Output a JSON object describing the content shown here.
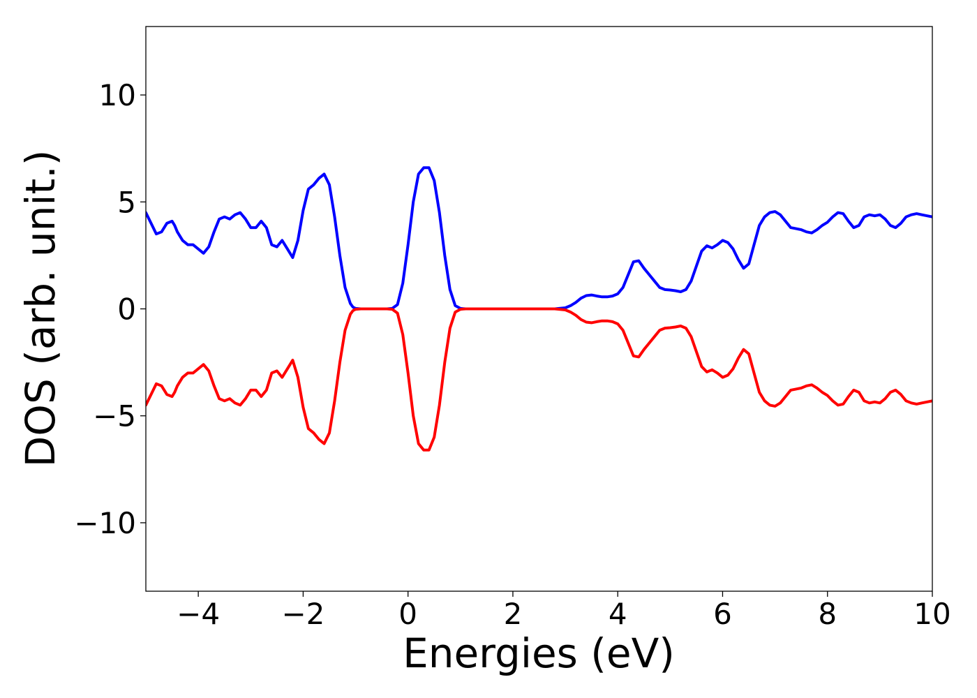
{
  "chart_data": {
    "type": "line",
    "title": "",
    "xlabel": "Energies (eV)",
    "ylabel": "DOS (arb. unit.)",
    "xlim": [
      -5,
      10
    ],
    "ylim": [
      -13.2,
      13.2
    ],
    "xticks": [
      -4,
      -2,
      0,
      2,
      4,
      6,
      8,
      10
    ],
    "xtick_labels": [
      "−4",
      "−2",
      "0",
      "2",
      "4",
      "6",
      "8",
      "10"
    ],
    "yticks": [
      -10,
      -5,
      0,
      5,
      10
    ],
    "ytick_labels": [
      "−10",
      "−5",
      "0",
      "5",
      "10"
    ],
    "grid": false,
    "legend": "none",
    "series": [
      {
        "color": "#0000ff",
        "x": [
          -5.0,
          -4.9,
          -4.8,
          -4.7,
          -4.6,
          -4.5,
          -4.45,
          -4.4,
          -4.3,
          -4.2,
          -4.1,
          -4.0,
          -3.9,
          -3.8,
          -3.7,
          -3.6,
          -3.5,
          -3.4,
          -3.3,
          -3.2,
          -3.1,
          -3.0,
          -2.9,
          -2.8,
          -2.7,
          -2.6,
          -2.5,
          -2.4,
          -2.3,
          -2.2,
          -2.1,
          -2.0,
          -1.9,
          -1.8,
          -1.7,
          -1.6,
          -1.5,
          -1.4,
          -1.3,
          -1.2,
          -1.1,
          -1.05,
          -1.0,
          -0.9,
          -0.8,
          -0.7,
          -0.6,
          -0.5,
          -0.4,
          -0.3,
          -0.2,
          -0.1,
          0.0,
          0.1,
          0.2,
          0.3,
          0.4,
          0.5,
          0.6,
          0.7,
          0.8,
          0.9,
          1.0,
          1.05,
          1.1,
          1.15,
          1.2,
          1.3,
          1.4,
          1.5,
          1.6,
          1.7,
          1.8,
          1.9,
          2.0,
          2.2,
          2.4,
          2.6,
          2.8,
          3.0,
          3.1,
          3.2,
          3.3,
          3.4,
          3.5,
          3.6,
          3.7,
          3.8,
          3.9,
          4.0,
          4.1,
          4.2,
          4.3,
          4.4,
          4.5,
          4.6,
          4.7,
          4.8,
          4.9,
          5.0,
          5.1,
          5.2,
          5.3,
          5.4,
          5.5,
          5.6,
          5.7,
          5.8,
          5.9,
          6.0,
          6.1,
          6.2,
          6.3,
          6.4,
          6.5,
          6.6,
          6.7,
          6.8,
          6.9,
          7.0,
          7.1,
          7.2,
          7.3,
          7.4,
          7.5,
          7.6,
          7.7,
          7.8,
          7.9,
          8.0,
          8.1,
          8.2,
          8.3,
          8.4,
          8.5,
          8.6,
          8.7,
          8.8,
          8.9,
          9.0,
          9.1,
          9.2,
          9.3,
          9.4,
          9.5,
          9.6,
          9.7,
          9.8,
          9.9,
          10.0
        ],
        "y": [
          4.5,
          4.0,
          3.5,
          3.6,
          4.0,
          4.1,
          3.9,
          3.6,
          3.2,
          3.0,
          3.0,
          2.8,
          2.6,
          2.9,
          3.6,
          4.2,
          4.3,
          4.2,
          4.4,
          4.5,
          4.2,
          3.8,
          3.8,
          4.1,
          3.8,
          3.0,
          2.9,
          3.2,
          2.8,
          2.4,
          3.2,
          4.6,
          5.6,
          5.8,
          6.1,
          6.3,
          5.8,
          4.3,
          2.5,
          1.0,
          0.25,
          0.08,
          0.02,
          0.0,
          0.0,
          0.0,
          0.0,
          0.0,
          0.0,
          0.02,
          0.2,
          1.2,
          3.0,
          5.0,
          6.3,
          6.6,
          6.6,
          6.0,
          4.5,
          2.5,
          0.9,
          0.15,
          0.02,
          0.01,
          0.0,
          0.0,
          0.0,
          0.0,
          0.0,
          0.0,
          0.0,
          0.0,
          0.0,
          0.0,
          0.0,
          0.0,
          0.0,
          0.0,
          0.0,
          0.05,
          0.15,
          0.3,
          0.5,
          0.62,
          0.65,
          0.6,
          0.56,
          0.56,
          0.6,
          0.7,
          1.0,
          1.6,
          2.2,
          2.25,
          1.9,
          1.6,
          1.3,
          1.0,
          0.9,
          0.88,
          0.85,
          0.8,
          0.9,
          1.3,
          2.0,
          2.7,
          2.95,
          2.85,
          3.0,
          3.2,
          3.1,
          2.8,
          2.3,
          1.9,
          2.1,
          3.0,
          3.9,
          4.3,
          4.5,
          4.55,
          4.4,
          4.1,
          3.8,
          3.75,
          3.7,
          3.6,
          3.55,
          3.7,
          3.9,
          4.05,
          4.3,
          4.5,
          4.45,
          4.1,
          3.8,
          3.9,
          4.3,
          4.4,
          4.35,
          4.4,
          4.2,
          3.9,
          3.8,
          4.0,
          4.3,
          4.4,
          4.45,
          4.4,
          4.35,
          4.3
        ]
      },
      {
        "color": "#ff0000",
        "x": [
          -5.0,
          -4.9,
          -4.8,
          -4.7,
          -4.6,
          -4.5,
          -4.45,
          -4.4,
          -4.3,
          -4.2,
          -4.1,
          -4.0,
          -3.9,
          -3.8,
          -3.7,
          -3.6,
          -3.5,
          -3.4,
          -3.3,
          -3.2,
          -3.1,
          -3.0,
          -2.9,
          -2.8,
          -2.7,
          -2.6,
          -2.5,
          -2.4,
          -2.3,
          -2.2,
          -2.1,
          -2.0,
          -1.9,
          -1.8,
          -1.7,
          -1.6,
          -1.5,
          -1.4,
          -1.3,
          -1.2,
          -1.1,
          -1.05,
          -1.0,
          -0.9,
          -0.8,
          -0.7,
          -0.6,
          -0.5,
          -0.4,
          -0.3,
          -0.2,
          -0.1,
          0.0,
          0.1,
          0.2,
          0.3,
          0.4,
          0.5,
          0.6,
          0.7,
          0.8,
          0.9,
          1.0,
          1.05,
          1.1,
          1.15,
          1.2,
          1.3,
          1.4,
          1.5,
          1.6,
          1.7,
          1.8,
          1.9,
          2.0,
          2.2,
          2.4,
          2.6,
          2.8,
          3.0,
          3.1,
          3.2,
          3.3,
          3.4,
          3.5,
          3.6,
          3.7,
          3.8,
          3.9,
          4.0,
          4.1,
          4.2,
          4.3,
          4.4,
          4.5,
          4.6,
          4.7,
          4.8,
          4.9,
          5.0,
          5.1,
          5.2,
          5.3,
          5.4,
          5.5,
          5.6,
          5.7,
          5.8,
          5.9,
          6.0,
          6.1,
          6.2,
          6.3,
          6.4,
          6.5,
          6.6,
          6.7,
          6.8,
          6.9,
          7.0,
          7.1,
          7.2,
          7.3,
          7.4,
          7.5,
          7.6,
          7.7,
          7.8,
          7.9,
          8.0,
          8.1,
          8.2,
          8.3,
          8.4,
          8.5,
          8.6,
          8.7,
          8.8,
          8.9,
          9.0,
          9.1,
          9.2,
          9.3,
          9.4,
          9.5,
          9.6,
          9.7,
          9.8,
          9.9,
          10.0
        ],
        "y": [
          -4.5,
          -4.0,
          -3.5,
          -3.6,
          -4.0,
          -4.1,
          -3.9,
          -3.6,
          -3.2,
          -3.0,
          -3.0,
          -2.8,
          -2.6,
          -2.9,
          -3.6,
          -4.2,
          -4.3,
          -4.2,
          -4.4,
          -4.5,
          -4.2,
          -3.8,
          -3.8,
          -4.1,
          -3.8,
          -3.0,
          -2.9,
          -3.2,
          -2.8,
          -2.4,
          -3.2,
          -4.6,
          -5.6,
          -5.8,
          -6.1,
          -6.3,
          -5.8,
          -4.3,
          -2.5,
          -1.0,
          -0.25,
          -0.08,
          -0.02,
          0.0,
          0.0,
          0.0,
          0.0,
          0.0,
          0.0,
          -0.02,
          -0.2,
          -1.2,
          -3.0,
          -5.0,
          -6.3,
          -6.6,
          -6.6,
          -6.0,
          -4.5,
          -2.5,
          -0.9,
          -0.15,
          -0.02,
          -0.01,
          0.0,
          0.0,
          0.0,
          0.0,
          0.0,
          0.0,
          0.0,
          0.0,
          0.0,
          0.0,
          0.0,
          0.0,
          0.0,
          0.0,
          0.0,
          -0.05,
          -0.15,
          -0.3,
          -0.5,
          -0.62,
          -0.65,
          -0.6,
          -0.56,
          -0.56,
          -0.6,
          -0.7,
          -1.0,
          -1.6,
          -2.2,
          -2.25,
          -1.9,
          -1.6,
          -1.3,
          -1.0,
          -0.9,
          -0.88,
          -0.85,
          -0.8,
          -0.9,
          -1.3,
          -2.0,
          -2.7,
          -2.95,
          -2.85,
          -3.0,
          -3.2,
          -3.1,
          -2.8,
          -2.3,
          -1.9,
          -2.1,
          -3.0,
          -3.9,
          -4.3,
          -4.5,
          -4.55,
          -4.4,
          -4.1,
          -3.8,
          -3.75,
          -3.7,
          -3.6,
          -3.55,
          -3.7,
          -3.9,
          -4.05,
          -4.3,
          -4.5,
          -4.45,
          -4.1,
          -3.8,
          -3.9,
          -4.3,
          -4.4,
          -4.35,
          -4.4,
          -4.2,
          -3.9,
          -3.8,
          -4.0,
          -4.3,
          -4.4,
          -4.45,
          -4.4,
          -4.35,
          -4.3
        ]
      }
    ]
  }
}
